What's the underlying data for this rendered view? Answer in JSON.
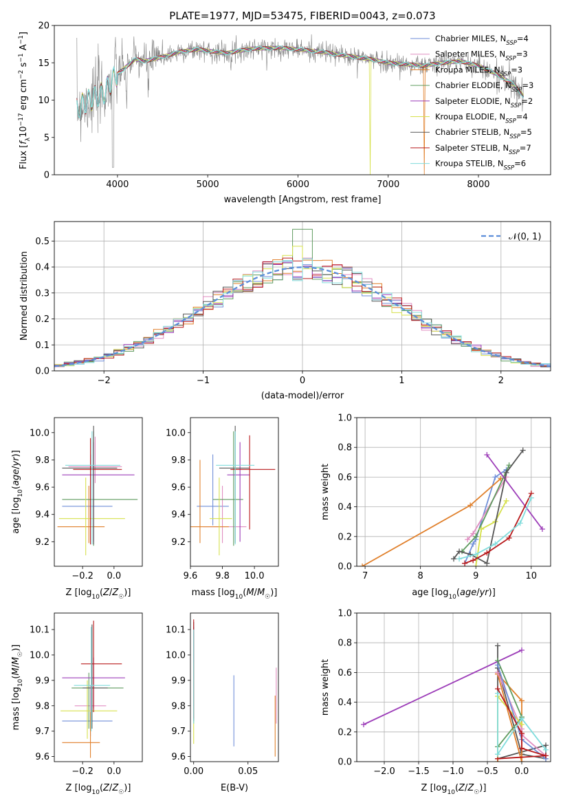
{
  "chart_data": [
    {
      "type": "line",
      "title": "PLATE=1977, MJD=53475, FIBERID=0043, z=0.073",
      "xlabel": "wavelength [Angstrom, rest frame]",
      "ylabel": "Flux [f_λ10⁻¹⁷ erg cm⁻² s⁻¹ A⁻¹]",
      "xlim": [
        3300,
        8800
      ],
      "ylim": [
        0,
        20
      ],
      "xticks": [
        "4000",
        "5000",
        "6000",
        "7000",
        "8000"
      ],
      "yticks": [
        "0",
        "5",
        "10",
        "15",
        "20"
      ],
      "legend_position": "upper right",
      "series": [
        {
          "name": "Chabrier MILES, N_SSP=4",
          "color": "#6f8ed8"
        },
        {
          "name": "Salpeter MILES, N_SSP=3",
          "color": "#e08cc0"
        },
        {
          "name": "Kroupa MILES, N_SSP=3",
          "color": "#e07f2a"
        },
        {
          "name": "Chabrier ELODIE, N_SSP=3",
          "color": "#5e9a5e"
        },
        {
          "name": "Salpeter ELODIE, N_SSP=2",
          "color": "#9c3cb8"
        },
        {
          "name": "Kroupa ELODIE, N_SSP=4",
          "color": "#d6e04a"
        },
        {
          "name": "Chabrier STELIB, N_SSP=5",
          "color": "#555555"
        },
        {
          "name": "Salpeter STELIB, N_SSP=7",
          "color": "#b8181a"
        },
        {
          "name": "Kroupa STELIB, N_SSP=6",
          "color": "#7fdcdc"
        }
      ],
      "continuum": {
        "x": [
          3550,
          3700,
          3850,
          4000,
          4100,
          4200,
          4300,
          4500,
          4700,
          4900,
          5000,
          5200,
          5500,
          5800,
          6000,
          6300,
          6500,
          6800,
          7000,
          7200,
          7400,
          7600,
          7800,
          8000,
          8200,
          8400,
          8500
        ],
        "y": [
          9,
          10,
          11,
          13.5,
          14.5,
          15.5,
          15.2,
          15.8,
          16.5,
          16.8,
          16.6,
          16.3,
          16.9,
          17.0,
          16.8,
          16.4,
          16.0,
          15.5,
          15.0,
          14.8,
          14.6,
          15.0,
          15.2,
          14.6,
          13.5,
          12.0,
          10.5
        ]
      }
    },
    {
      "type": "histogram",
      "xlabel": "(data-model)/error",
      "ylabel": "Normed distribution",
      "xlim": [
        -2.5,
        2.5
      ],
      "ylim": [
        0,
        0.575
      ],
      "xticks": [
        "−2",
        "−1",
        "0",
        "1",
        "2"
      ],
      "yticks": [
        "0.0",
        "0.1",
        "0.2",
        "0.3",
        "0.4",
        "0.5"
      ],
      "reference_curve": {
        "name": "𝒩(0, 1)",
        "mean": 0,
        "sigma": 1,
        "color": "#5b8dd9"
      },
      "legend_position": "upper right",
      "bin_width": 0.1,
      "example_bins": {
        "x": [
          -2.5,
          -2.0,
          -1.5,
          -1.0,
          -0.5,
          0.0,
          0.5,
          1.0,
          1.5,
          2.0,
          2.5
        ],
        "y": [
          0.02,
          0.06,
          0.14,
          0.23,
          0.35,
          0.4,
          0.35,
          0.25,
          0.13,
          0.06,
          0.02
        ]
      }
    },
    {
      "type": "errorbar",
      "xlabel": "Z [log₁₀(Z/Z☉)]",
      "ylabel": "age  [log₁₀(age/yr)]",
      "xlim": [
        -0.38,
        0.18
      ],
      "ylim": [
        9.02,
        10.11
      ],
      "xticks": [
        "−0.2",
        "0.0"
      ],
      "yticks": [
        "9.2",
        "9.4",
        "9.6",
        "9.8",
        "10.0"
      ],
      "points": [
        {
          "x": -0.15,
          "y": 9.46,
          "xerr": [
            0.18,
            0.14
          ],
          "yerr": [
            0.14,
            0.38
          ],
          "color": "#6f8ed8"
        },
        {
          "x": -0.12,
          "y": 9.75,
          "xerr": [
            0.17,
            0.17
          ],
          "yerr": [
            0.12,
            0.22
          ],
          "color": "#e08cc0"
        },
        {
          "x": -0.16,
          "y": 9.31,
          "xerr": [
            0.2,
            0.1
          ],
          "yerr": [
            0.12,
            0.3
          ],
          "color": "#e07f2a"
        },
        {
          "x": -0.13,
          "y": 9.51,
          "xerr": [
            0.2,
            0.28
          ],
          "yerr": [
            0.34,
            0.5
          ],
          "color": "#5e9a5e"
        },
        {
          "x": -0.13,
          "y": 9.69,
          "xerr": [
            0.2,
            0.26
          ],
          "yerr": [
            0.49,
            0.24
          ],
          "color": "#9c3cb8"
        },
        {
          "x": -0.18,
          "y": 9.37,
          "xerr": [
            0.17,
            0.25
          ],
          "yerr": [
            0.27,
            0.3
          ],
          "color": "#d6e04a"
        },
        {
          "x": -0.13,
          "y": 9.74,
          "xerr": [
            0.2,
            0.15
          ],
          "yerr": [
            0.56,
            0.31
          ],
          "color": "#555555"
        },
        {
          "x": -0.15,
          "y": 9.73,
          "xerr": [
            0.11,
            0.2
          ],
          "yerr": [
            0.55,
            0.23
          ],
          "color": "#b8181a"
        },
        {
          "x": -0.14,
          "y": 9.76,
          "xerr": [
            0.17,
            0.18
          ],
          "yerr": [
            0.58,
            0.25
          ],
          "color": "#7fdcdc"
        }
      ]
    },
    {
      "type": "errorbar",
      "xlabel": "mass [log₁₀(M/M☉)]",
      "ylabel": "",
      "xlim": [
        9.6,
        10.15
      ],
      "ylim": [
        9.02,
        10.11
      ],
      "xticks": [
        "9.6",
        "9.8",
        "10.0"
      ],
      "yticks": [
        "9.2",
        "9.4",
        "9.6",
        "9.8",
        "10.0"
      ],
      "points": [
        {
          "x": 9.74,
          "y": 9.46,
          "xerr": [
            0.1,
            0.1
          ],
          "yerr": [
            0.14,
            0.38
          ],
          "color": "#6f8ed8"
        },
        {
          "x": 9.8,
          "y": 9.31,
          "xerr": [
            0.12,
            0.15
          ],
          "yerr": [
            0.12,
            0.3
          ],
          "color": "#e08cc0"
        },
        {
          "x": 9.66,
          "y": 9.31,
          "xerr": [
            0.1,
            0.18
          ],
          "yerr": [
            0.12,
            0.49
          ],
          "color": "#e07f2a"
        },
        {
          "x": 9.87,
          "y": 9.51,
          "xerr": [
            0.13,
            0.06
          ],
          "yerr": [
            0.34,
            0.5
          ],
          "color": "#5e9a5e"
        },
        {
          "x": 9.91,
          "y": 9.69,
          "xerr": [
            0.08,
            0.06
          ],
          "yerr": [
            0.49,
            0.24
          ],
          "color": "#9c3cb8"
        },
        {
          "x": 9.78,
          "y": 9.37,
          "xerr": [
            0.06,
            0.08
          ],
          "yerr": [
            0.27,
            0.3
          ],
          "color": "#d6e04a"
        },
        {
          "x": 9.88,
          "y": 9.74,
          "xerr": [
            0.1,
            0.09
          ],
          "yerr": [
            0.55,
            0.31
          ],
          "color": "#555555"
        },
        {
          "x": 9.97,
          "y": 9.73,
          "xerr": [
            0.12,
            0.16
          ],
          "yerr": [
            0.44,
            0.25
          ],
          "color": "#b8181a"
        },
        {
          "x": 9.88,
          "y": 9.76,
          "xerr": [
            0.12,
            0.12
          ],
          "yerr": [
            0.58,
            0.25
          ],
          "color": "#7fdcdc"
        }
      ]
    },
    {
      "type": "line",
      "xlabel": "age  [log₁₀(age/yr)]",
      "ylabel": "mass weight",
      "xlim": [
        6.85,
        10.35
      ],
      "ylim": [
        0,
        1
      ],
      "xticks": [
        "7",
        "8",
        "9",
        "10"
      ],
      "yticks": [
        "0.0",
        "0.2",
        "0.4",
        "0.6",
        "0.8",
        "1.0"
      ],
      "grid": true,
      "series": [
        {
          "color": "#6f8ed8",
          "x": [
            8.8,
            8.95,
            9.0,
            9.35,
            9.55
          ],
          "y": [
            0.02,
            0.15,
            0.18,
            0.6,
            0.65
          ]
        },
        {
          "color": "#e08cc0",
          "x": [
            8.85,
            8.95,
            9.55
          ],
          "y": [
            0.18,
            0.22,
            0.6
          ]
        },
        {
          "color": "#e07f2a",
          "x": [
            6.95,
            8.9,
            9.45
          ],
          "y": [
            0.0,
            0.41,
            0.59
          ]
        },
        {
          "color": "#5e9a5e",
          "x": [
            8.75,
            9.0,
            9.6
          ],
          "y": [
            0.1,
            0.2,
            0.68
          ]
        },
        {
          "color": "#9c3cb8",
          "x": [
            9.2,
            10.2
          ],
          "y": [
            0.75,
            0.25
          ]
        },
        {
          "color": "#d6e04a",
          "x": [
            9.0,
            9.1,
            9.35,
            9.55
          ],
          "y": [
            0.0,
            0.25,
            0.3,
            0.44
          ]
        },
        {
          "color": "#555555",
          "x": [
            8.6,
            8.7,
            8.9,
            9.2,
            9.55,
            9.85
          ],
          "y": [
            0.05,
            0.1,
            0.08,
            0.02,
            0.63,
            0.78
          ]
        },
        {
          "color": "#b8181a",
          "x": [
            8.8,
            8.95,
            9.2,
            9.6,
            10.0
          ],
          "y": [
            0.02,
            0.04,
            0.09,
            0.19,
            0.49
          ]
        },
        {
          "color": "#7fdcdc",
          "x": [
            8.7,
            9.0,
            9.35,
            9.8,
            10.0
          ],
          "y": [
            0.05,
            0.08,
            0.15,
            0.29,
            0.46
          ]
        }
      ]
    },
    {
      "type": "errorbar",
      "xlabel": "Z [log₁₀(Z/Z☉)]",
      "ylabel": "mass [log₁₀(M/M☉)]",
      "xlim": [
        -0.38,
        0.18
      ],
      "ylim": [
        9.58,
        10.165
      ],
      "xticks": [
        "−0.2",
        "0.0"
      ],
      "yticks": [
        "9.6",
        "9.7",
        "9.8",
        "9.9",
        "10.0",
        "10.1"
      ],
      "points": [
        {
          "x": -0.15,
          "y": 9.74,
          "xerr": [
            0.18,
            0.14
          ],
          "yerr": [
            0.06,
            0.11
          ],
          "color": "#6f8ed8"
        },
        {
          "x": -0.15,
          "y": 9.8,
          "xerr": [
            0.1,
            0.1
          ],
          "yerr": [
            0.06,
            0.08
          ],
          "color": "#e08cc0"
        },
        {
          "x": -0.15,
          "y": 9.655,
          "xerr": [
            0.18,
            0.06
          ],
          "yerr": [
            0.06,
            0.12
          ],
          "color": "#e07f2a"
        },
        {
          "x": -0.16,
          "y": 9.87,
          "xerr": [
            0.11,
            0.22
          ],
          "yerr": [
            0.16,
            0.06
          ],
          "color": "#5e9a5e"
        },
        {
          "x": -0.13,
          "y": 9.91,
          "xerr": [
            0.2,
            0.2
          ],
          "yerr": [
            0.12,
            0.08
          ],
          "color": "#9c3cb8"
        },
        {
          "x": -0.17,
          "y": 9.78,
          "xerr": [
            0.17,
            0.19
          ],
          "yerr": [
            0.11,
            0.12
          ],
          "color": "#d6e04a"
        },
        {
          "x": -0.14,
          "y": 9.87,
          "xerr": [
            0.06,
            0.1
          ],
          "yerr": [
            0.16,
            0.25
          ],
          "color": "#555555"
        },
        {
          "x": -0.13,
          "y": 9.965,
          "xerr": [
            0.08,
            0.18
          ],
          "yerr": [
            0.19,
            0.17
          ],
          "color": "#b8181a"
        },
        {
          "x": -0.145,
          "y": 9.88,
          "xerr": [
            0.11,
            0.12
          ],
          "yerr": [
            0.18,
            0.23
          ],
          "color": "#7fdcdc"
        }
      ]
    },
    {
      "type": "errorbar",
      "xlabel": "E(B-V)",
      "ylabel": "",
      "xlim": [
        -0.003,
        0.078
      ],
      "ylim": [
        9.58,
        10.165
      ],
      "xticks": [
        "0.00",
        "0.05"
      ],
      "yticks": [
        "9.6",
        "9.7",
        "9.8",
        "9.9",
        "10.0",
        "10.1"
      ],
      "points": [
        {
          "x": 0.037,
          "y": 9.78,
          "yerr": [
            0.14,
            0.14
          ],
          "color": "#6f8ed8"
        },
        {
          "x": 0.076,
          "y": 9.8,
          "yerr": [
            0.07,
            0.15
          ],
          "color": "#e08cc0"
        },
        {
          "x": 0.075,
          "y": 9.72,
          "yerr": [
            0.12,
            0.12
          ],
          "color": "#e07f2a"
        },
        {
          "x": 0.0,
          "y": 9.88,
          "yerr": [
            0.15,
            0.21
          ],
          "color": "#5e9a5e"
        },
        {
          "x": 0.0,
          "y": 9.9,
          "yerr": [
            0.1,
            0.21
          ],
          "color": "#9c3cb8"
        },
        {
          "x": 0.0,
          "y": 9.81,
          "yerr": [
            0.16,
            0.16
          ],
          "color": "#d6e04a"
        },
        {
          "x": 0.0,
          "y": 9.95,
          "yerr": [
            0.21,
            0.18
          ],
          "color": "#555555"
        },
        {
          "x": 0.0,
          "y": 10.0,
          "yerr": [
            0.25,
            0.14
          ],
          "color": "#b8181a"
        },
        {
          "x": 0.0,
          "y": 9.93,
          "yerr": [
            0.2,
            0.17
          ],
          "color": "#7fdcdc"
        }
      ]
    },
    {
      "type": "line",
      "xlabel": "Z [log₁₀(Z/Z☉)]",
      "ylabel": "mass weight",
      "xlim": [
        -2.4,
        0.42
      ],
      "ylim": [
        0,
        1
      ],
      "xticks": [
        "−2.0",
        "−1.5",
        "−1.0",
        "−0.5",
        "0.0"
      ],
      "yticks": [
        "0.0",
        "0.2",
        "0.4",
        "0.6",
        "0.8",
        "1.0"
      ],
      "grid": true,
      "series": [
        {
          "color": "#9c3cb8",
          "x": [
            -2.3,
            0.0
          ],
          "y": [
            0.25,
            0.75
          ]
        },
        {
          "color": "#555555",
          "x": [
            -0.35,
            -0.35,
            -0.35,
            0.35,
            0.35,
            0.0,
            -0.35
          ],
          "y": [
            0.78,
            0.6,
            0.02,
            0.11,
            0.02,
            0.05,
            0.63
          ]
        },
        {
          "color": "#e07f2a",
          "x": [
            -0.35,
            0.0,
            0.0,
            -0.35
          ],
          "y": [
            0.59,
            0.41,
            0.0,
            0.59
          ]
        },
        {
          "color": "#e08cc0",
          "x": [
            -0.35,
            0.0,
            0.0,
            0.35
          ],
          "y": [
            0.6,
            0.22,
            0.18,
            0.04
          ]
        },
        {
          "color": "#5e9a5e",
          "x": [
            -0.35,
            0.0,
            -0.35
          ],
          "y": [
            0.1,
            0.3,
            0.68
          ]
        },
        {
          "color": "#d6e04a",
          "x": [
            -0.35,
            -0.35,
            0.0
          ],
          "y": [
            0.0,
            0.44,
            0.25
          ]
        },
        {
          "color": "#6f8ed8",
          "x": [
            -0.35,
            0.0,
            0.35
          ],
          "y": [
            0.65,
            0.15,
            0.02
          ]
        },
        {
          "color": "#b8181a",
          "x": [
            -0.35,
            0.0,
            0.0,
            0.35,
            -0.35
          ],
          "y": [
            0.49,
            0.19,
            0.09,
            0.04,
            0.02
          ]
        },
        {
          "color": "#7fdcdc",
          "x": [
            -0.35,
            -0.35,
            0.0,
            0.35
          ],
          "y": [
            0.46,
            0.05,
            0.29,
            0.08
          ]
        }
      ]
    }
  ]
}
